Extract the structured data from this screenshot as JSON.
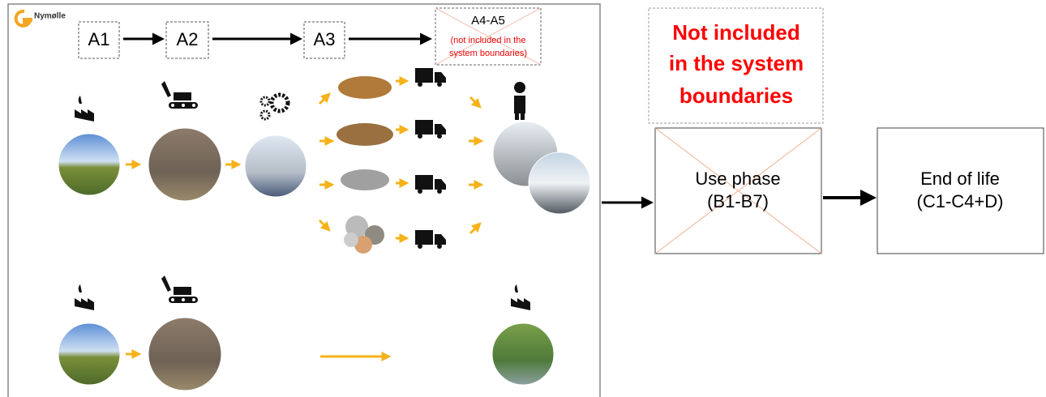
{
  "logo": "Nymølle",
  "stages": [
    {
      "label": "A1"
    },
    {
      "label": "A2"
    },
    {
      "label": "A3"
    }
  ],
  "a4_a5": {
    "label": "A4-A5",
    "note": [
      "(not included in the",
      "system boundaries)"
    ]
  },
  "excluded_note": [
    "Not included",
    "in the system",
    "boundaries"
  ],
  "use_phase": [
    "Use phase",
    "(B1-B7)"
  ],
  "end_of_life": [
    "End of life",
    "(C1-C4+D)"
  ]
}
